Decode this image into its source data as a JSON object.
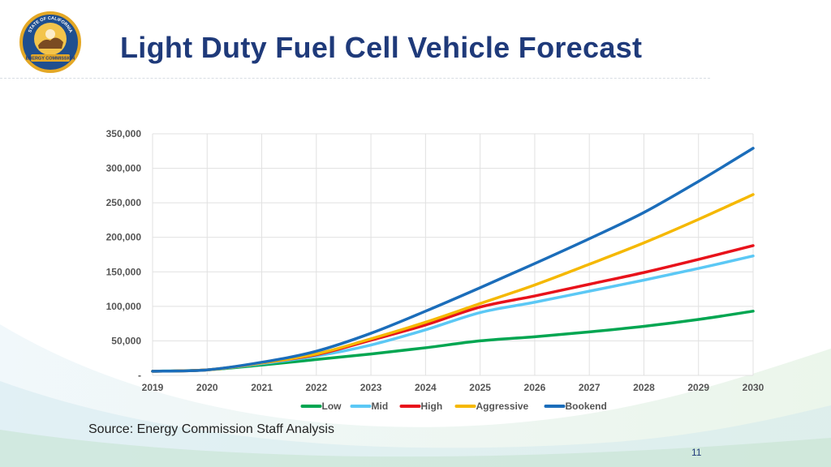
{
  "header": {
    "title": "Light Duty Fuel Cell Vehicle Forecast",
    "logo_text_top": "STATE OF CALIFORNIA",
    "logo_text_bottom": "ENERGY COMMISSION"
  },
  "footer": {
    "source": "Source: Energy Commission Staff Analysis",
    "page_number": "11"
  },
  "colors": {
    "title": "#1f3a7a",
    "low": "#00a651",
    "mid": "#5bc8f5",
    "high": "#e8121b",
    "aggressive": "#f5b800",
    "bookend": "#1b6dba"
  },
  "chart_data": {
    "type": "line",
    "title": "",
    "xlabel": "",
    "ylabel": "",
    "x": [
      2019,
      2020,
      2021,
      2022,
      2023,
      2024,
      2025,
      2026,
      2027,
      2028,
      2029,
      2030
    ],
    "x_tick_labels": [
      "2019",
      "2020",
      "2021",
      "2022",
      "2023",
      "2024",
      "2025",
      "2026",
      "2027",
      "2028",
      "2029",
      "2030"
    ],
    "ylim": [
      0,
      350000
    ],
    "y_ticks": [
      0,
      50000,
      100000,
      150000,
      200000,
      250000,
      300000,
      350000
    ],
    "y_tick_labels": [
      "-",
      "50,000",
      "100,000",
      "150,000",
      "200,000",
      "250,000",
      "300,000",
      "350,000"
    ],
    "grid": true,
    "legend_position": "bottom",
    "series": [
      {
        "name": "Low",
        "color": "#00a651",
        "values": [
          6000,
          8000,
          15000,
          23000,
          31000,
          40000,
          50000,
          56000,
          63000,
          71000,
          81000,
          93000
        ]
      },
      {
        "name": "Mid",
        "color": "#5bc8f5",
        "values": [
          6000,
          8000,
          17000,
          28000,
          44000,
          66000,
          91000,
          106000,
          122000,
          138000,
          155000,
          173000
        ]
      },
      {
        "name": "High",
        "color": "#e8121b",
        "values": [
          6000,
          8000,
          18000,
          30000,
          51000,
          73000,
          99000,
          115000,
          132000,
          149000,
          168000,
          188000
        ]
      },
      {
        "name": "Aggressive",
        "color": "#f5b800",
        "values": [
          6000,
          8000,
          18000,
          31000,
          53000,
          77000,
          104000,
          131000,
          161000,
          192000,
          226000,
          262000
        ]
      },
      {
        "name": "Bookend",
        "color": "#1b6dba",
        "values": [
          6000,
          8000,
          19000,
          35000,
          61000,
          93000,
          127000,
          162000,
          198000,
          236000,
          281000,
          329000
        ]
      }
    ]
  }
}
